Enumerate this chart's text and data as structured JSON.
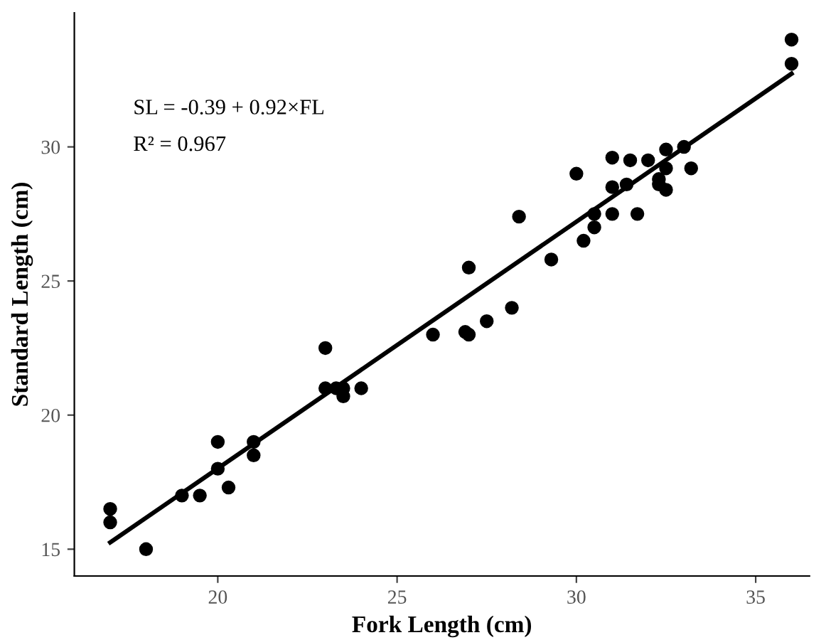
{
  "chart_data": {
    "type": "scatter",
    "xlabel": "Fork Length (cm)",
    "ylabel": "Standard Length (cm)",
    "xlim": [
      16.0,
      36.5
    ],
    "ylim": [
      14.0,
      35.0
    ],
    "xticks": [
      20,
      25,
      30,
      35
    ],
    "yticks": [
      15,
      20,
      25,
      30
    ],
    "grid": false,
    "legend": false,
    "marker": "circle",
    "annotations": [
      "SL = -0.39 + 0.92×FL",
      "R² = 0.967"
    ],
    "series": [
      {
        "color": "#000000",
        "x": [
          17.0,
          17.0,
          18.0,
          19.0,
          19.5,
          20.0,
          20.0,
          20.3,
          21.0,
          21.0,
          23.0,
          23.0,
          23.3,
          23.5,
          23.5,
          24.0,
          26.0,
          26.9,
          27.0,
          27.0,
          27.5,
          28.2,
          28.4,
          29.3,
          30.0,
          30.2,
          30.5,
          30.5,
          31.0,
          31.0,
          31.0,
          31.4,
          31.5,
          31.7,
          32.0,
          32.3,
          32.3,
          32.5,
          32.5,
          32.5,
          33.0,
          33.2,
          36.0,
          36.0
        ],
        "values": [
          16.5,
          16.0,
          15.0,
          17.0,
          17.0,
          19.0,
          18.0,
          17.3,
          19.0,
          18.5,
          22.5,
          21.0,
          21.0,
          21.0,
          20.7,
          21.0,
          23.0,
          23.1,
          23.0,
          25.5,
          23.5,
          24.0,
          27.4,
          25.8,
          29.0,
          26.5,
          27.0,
          27.5,
          27.5,
          28.5,
          29.6,
          28.6,
          29.5,
          27.5,
          29.5,
          28.8,
          28.6,
          29.9,
          29.2,
          28.4,
          30.0,
          29.2,
          34.0,
          33.1
        ]
      },
      {
        "type": "line",
        "color": "#000000",
        "marker": "none",
        "line_style": "solid",
        "x": [
          17.0,
          36.0
        ],
        "values": [
          15.25,
          32.73
        ]
      }
    ]
  }
}
